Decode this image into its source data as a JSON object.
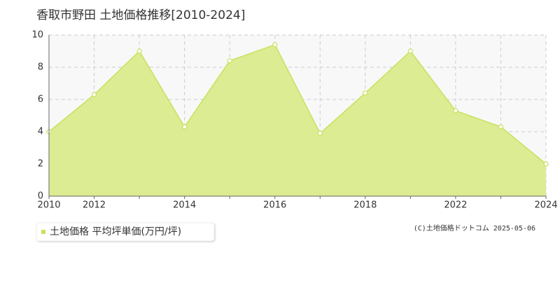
{
  "chart_data": {
    "type": "area",
    "title": "香取市野田 土地価格推移[2010-2024]",
    "categories": [
      "2010",
      "2012",
      null,
      "2014",
      null,
      "2016",
      null,
      "2018",
      null,
      "2022",
      null,
      "2024"
    ],
    "series": [
      {
        "name": "土地価格 平均坪単価(万円/坪)",
        "color": "#c6e25e",
        "fill": "#dcec93",
        "values": [
          4.0,
          6.3,
          9.0,
          4.3,
          8.4,
          9.4,
          3.9,
          6.4,
          9.0,
          5.3,
          4.3,
          2.0
        ]
      }
    ],
    "ylim": [
      0,
      10
    ],
    "yticks": [
      0,
      2,
      4,
      6,
      8,
      10
    ],
    "grid": true,
    "source": "(C)土地価格ドットコム 2025-05-06"
  }
}
